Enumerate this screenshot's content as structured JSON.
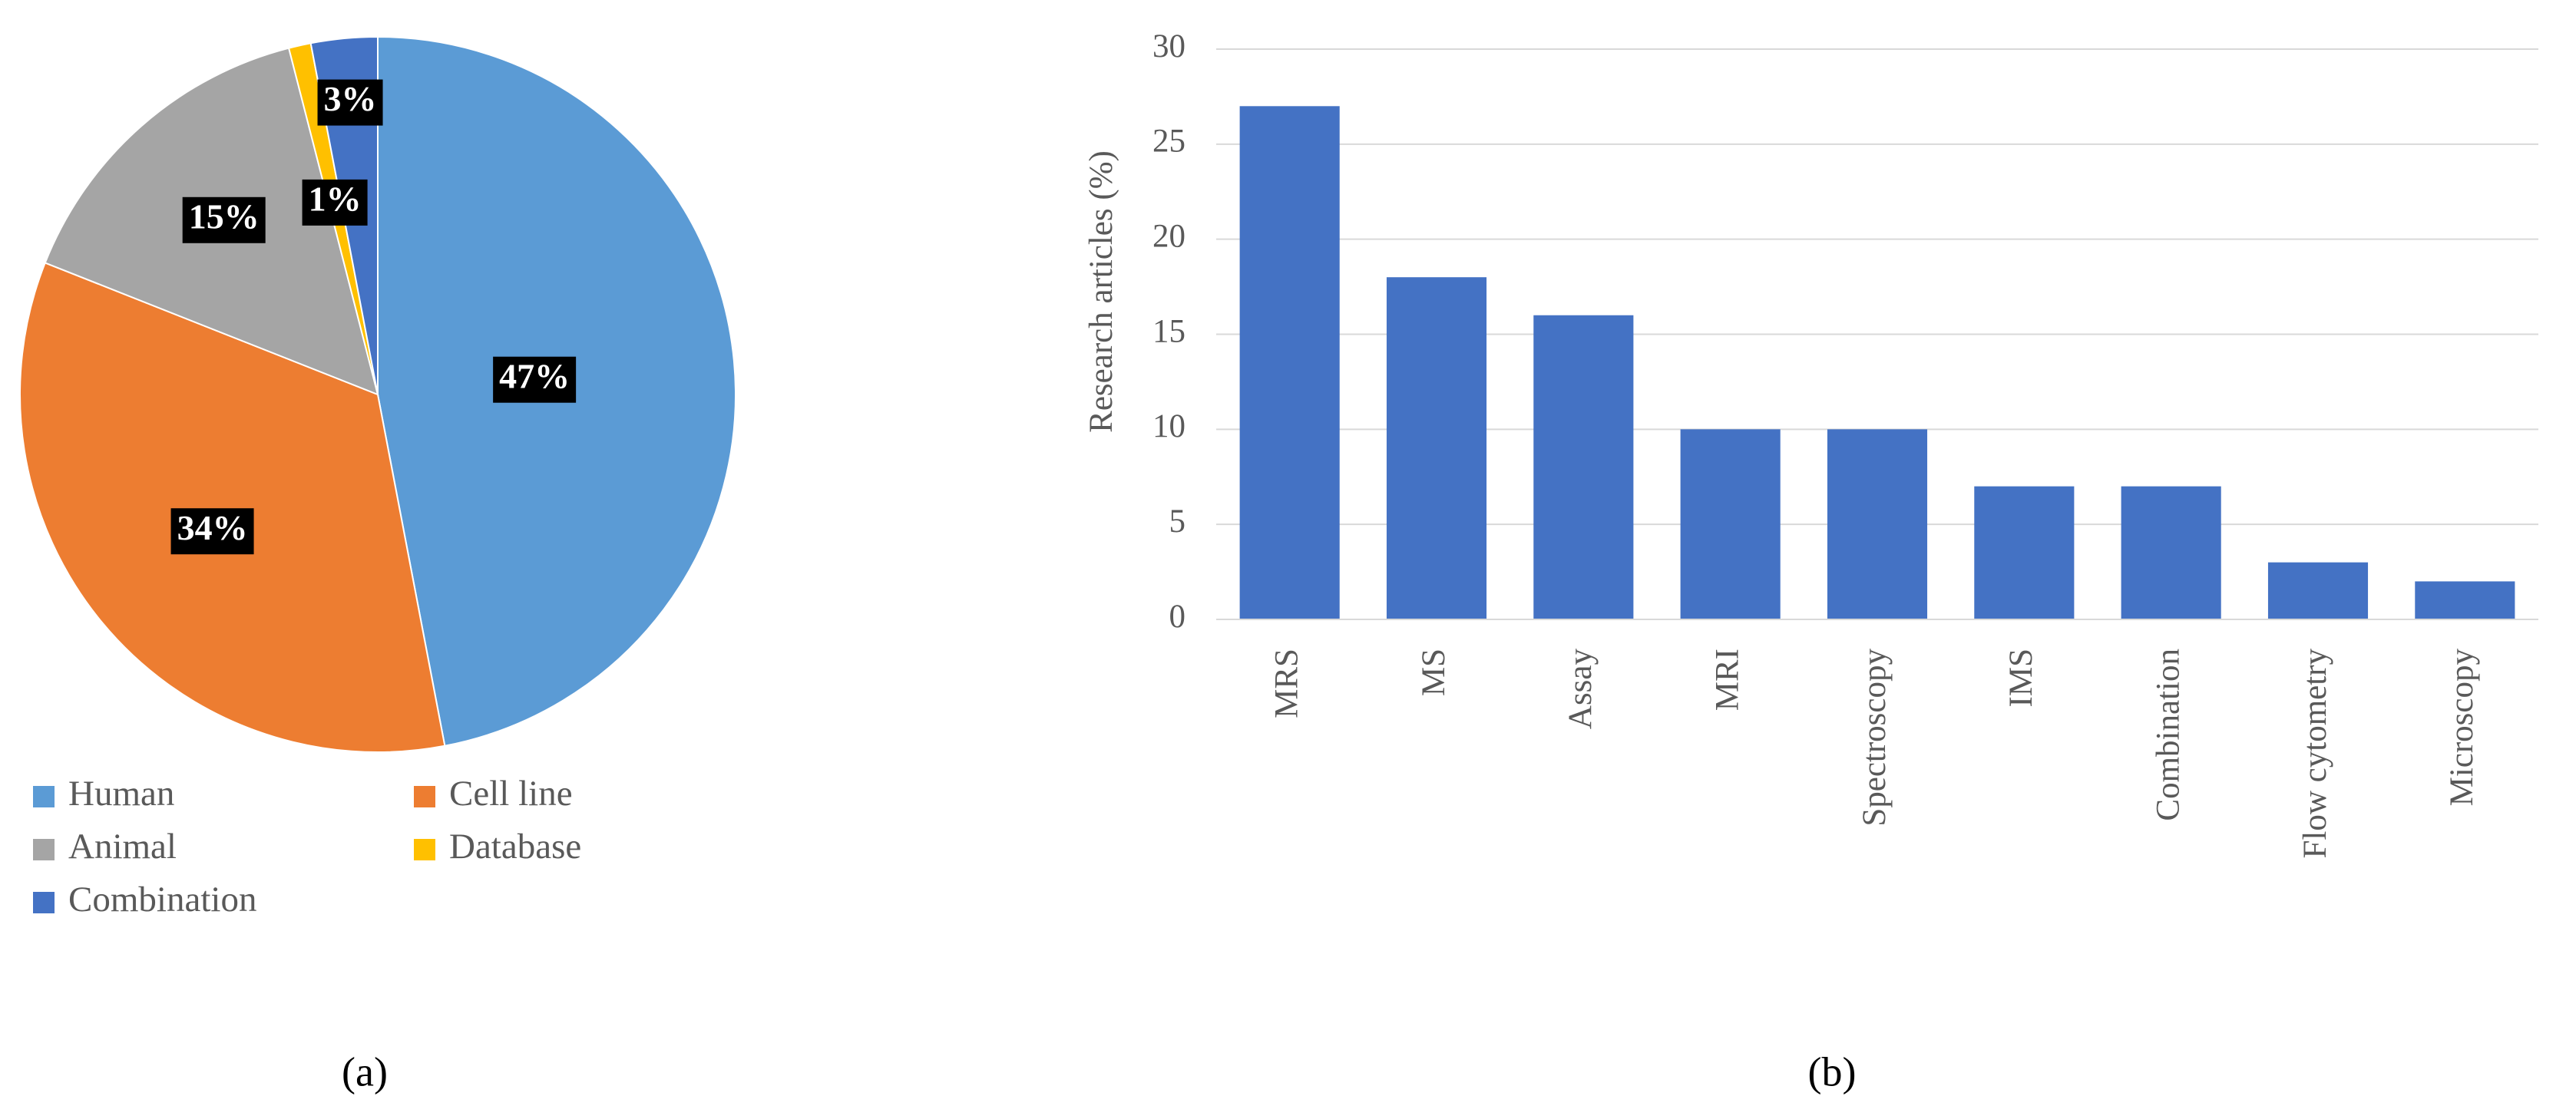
{
  "chart_data": [
    {
      "type": "pie",
      "panel_label": "(a)",
      "categories": [
        "Human",
        "Cell line",
        "Animal",
        "Database",
        "Combination"
      ],
      "values": [
        47,
        34,
        15,
        1,
        3
      ],
      "value_labels": [
        "47%",
        "34%",
        "15%",
        "1%",
        "3%"
      ],
      "colors": [
        "#5b9bd5",
        "#ed7d31",
        "#a5a5a5",
        "#ffc000",
        "#4472c4"
      ],
      "legend": "bottom"
    },
    {
      "type": "bar",
      "panel_label": "(b)",
      "y_label": "Research articles (%)",
      "categories": [
        "MRS",
        "MS",
        "Assay",
        "MRI",
        "Spectroscopy",
        "IMS",
        "Combination",
        "Flow cytometry",
        "Microscopy"
      ],
      "values": [
        27,
        18,
        16,
        10,
        10,
        7,
        7,
        3,
        2
      ],
      "color": "#4472c4",
      "ylim": [
        0,
        30
      ],
      "yticks": [
        0,
        5,
        10,
        15,
        20,
        25,
        30
      ],
      "grid": true
    }
  ]
}
